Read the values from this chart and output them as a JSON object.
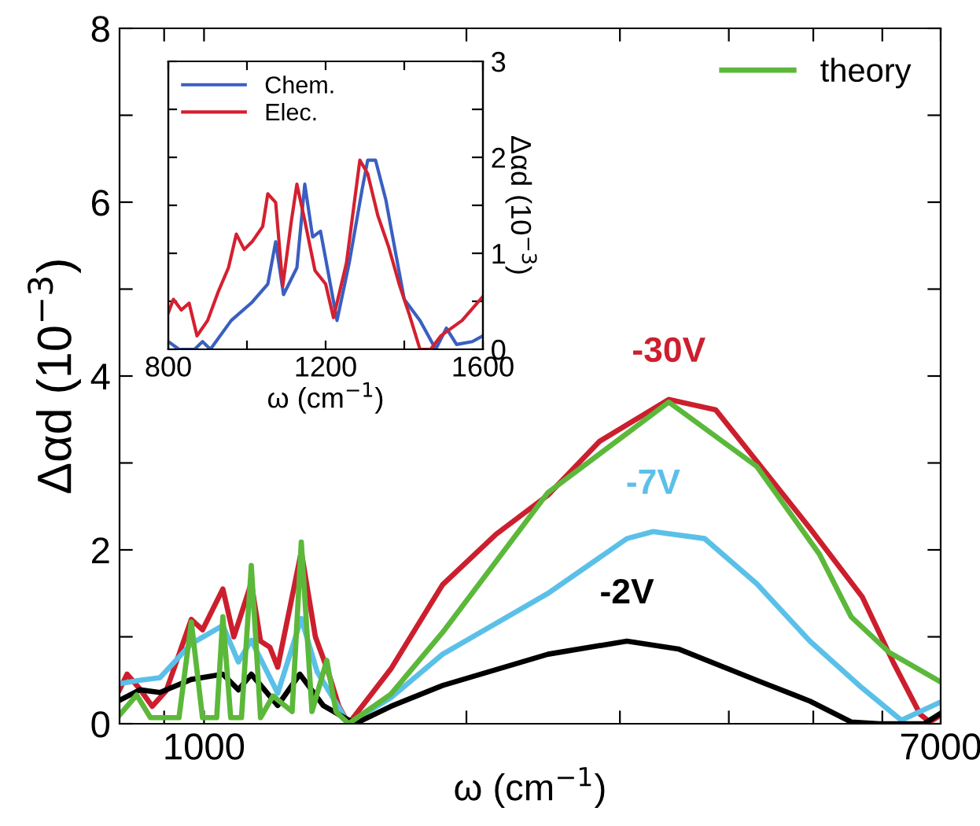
{
  "chart_data": [
    {
      "type": "line",
      "xlabel": "ω (cm$^{−1}$)",
      "ylabel": "Δαd (10$^{−3}$)",
      "log": "x",
      "xlim": [
        800,
        7000
      ],
      "xticks": [
        {
          "value": 900,
          "label": null
        },
        1000,
        {
          "value": 2000,
          "label": null
        },
        {
          "value": 3000,
          "label": null
        },
        {
          "value": 4000,
          "label": null
        },
        {
          "value": 5000,
          "label": null
        },
        {
          "value": 6000,
          "label": null
        },
        7000
      ],
      "ylim": [
        0,
        8
      ],
      "yticks": [
        0,
        {
          "value": 1,
          "label": null
        },
        2,
        {
          "value": 3,
          "label": null
        },
        4,
        {
          "value": 5,
          "label": null
        },
        6,
        {
          "value": 7,
          "label": null
        },
        8
      ],
      "grid": false,
      "legend": "top right",
      "series": [
        {
          "color": "#cc1f2e",
          "x": [
            800,
            816,
            844,
            872,
            905,
            967,
            996,
            1051,
            1082,
            1133,
            1161,
            1190,
            1215,
            1293,
            1342,
            1388,
            1428,
            1465,
            1638,
            1878,
            2163,
            2481,
            2844,
            3413,
            3865,
            4306,
            4955,
            5690,
            6180,
            6630,
            6800,
            7000
          ],
          "values": [
            0.39,
            0.57,
            0.4,
            0.2,
            0.38,
            1.2,
            1.08,
            1.55,
            1.0,
            1.62,
            0.95,
            0.88,
            0.65,
            1.98,
            1.0,
            0.6,
            0.2,
            0.0,
            0.63,
            1.6,
            2.18,
            2.63,
            3.25,
            3.73,
            3.61,
            3.02,
            2.25,
            1.46,
            0.7,
            0.11,
            0.02,
            0.1
          ]
        },
        {
          "color": "#5bc0e8",
          "x": [
            800,
            844,
            890,
            967,
            1051,
            1095,
            1133,
            1215,
            1293,
            1348,
            1465,
            1638,
            1878,
            2481,
            3056,
            3275,
            3752,
            4306,
            4955,
            5690,
            6310,
            7000
          ],
          "values": [
            0.46,
            0.5,
            0.53,
            0.92,
            1.13,
            0.71,
            0.96,
            0.35,
            1.21,
            0.6,
            0.0,
            0.3,
            0.8,
            1.5,
            2.13,
            2.21,
            2.13,
            1.61,
            0.95,
            0.41,
            0.04,
            0.25
          ]
        },
        {
          "color": "#000000",
          "x": [
            800,
            844,
            890,
            967,
            1051,
            1095,
            1133,
            1215,
            1288,
            1370,
            1490,
            1638,
            1878,
            2481,
            3056,
            3500,
            4306,
            4955,
            5526,
            5960,
            6700,
            7000
          ],
          "values": [
            0.27,
            0.39,
            0.36,
            0.51,
            0.57,
            0.39,
            0.57,
            0.21,
            0.57,
            0.21,
            0.0,
            0.2,
            0.44,
            0.8,
            0.95,
            0.86,
            0.5,
            0.26,
            0.02,
            0.0,
            0.0,
            0.12
          ]
        },
        {
          "name": "theory",
          "color": "#5cb83a",
          "x": [
            800,
            837,
            868,
            936,
            967,
            996,
            1034,
            1051,
            1073,
            1104,
            1133,
            1161,
            1200,
            1262,
            1293,
            1330,
            1383,
            1417,
            1465,
            1638,
            1878,
            2481,
            3413,
            4306,
            5082,
            5526,
            6111,
            7000
          ],
          "values": [
            0.1,
            0.33,
            0.07,
            0.07,
            1.17,
            0.07,
            0.07,
            1.23,
            0.07,
            0.07,
            1.82,
            0.07,
            0.32,
            0.14,
            2.09,
            0.14,
            0.73,
            0.14,
            0.0,
            0.34,
            1.05,
            2.66,
            3.7,
            2.96,
            1.95,
            1.23,
            0.82,
            0.48
          ]
        }
      ],
      "annotations": [
        "-30V",
        "-7V",
        "-2V"
      ]
    },
    {
      "type": "line",
      "xlabel": "ω (cm$^{−1}$)",
      "y2label": "Δαd (10$^{−3}$)",
      "xlim": [
        800,
        1600
      ],
      "xticks": [
        800,
        {
          "value": 1000,
          "label": null
        },
        1200,
        {
          "value": 1400,
          "label": null
        },
        1600
      ],
      "y2lim": [
        0,
        3
      ],
      "y2ticks": [
        0,
        {
          "value": 0.5,
          "label": null
        },
        1,
        {
          "value": 1.5,
          "label": null
        },
        2,
        {
          "value": 2.5,
          "label": null
        },
        3
      ],
      "grid": false,
      "legend": "top left",
      "series": [
        {
          "name": "Chem.",
          "color": "#3a5fc0",
          "axis": "y2",
          "x": [
            800,
            827,
            867,
            887,
            907,
            960,
            1013,
            1053,
            1073,
            1093,
            1127,
            1147,
            1167,
            1187,
            1207,
            1229,
            1260,
            1293,
            1307,
            1327,
            1353,
            1380,
            1400,
            1440,
            1480,
            1507,
            1533,
            1573,
            1600
          ],
          "values": [
            0.08,
            0,
            0,
            0.08,
            0,
            0.3,
            0.49,
            0.68,
            1.12,
            0.57,
            0.85,
            1.72,
            1.17,
            1.23,
            0.79,
            0.3,
            0.9,
            1.67,
            1.97,
            1.97,
            1.56,
            0.96,
            0.52,
            0.3,
            0,
            0.22,
            0.05,
            0.08,
            0.14
          ]
        },
        {
          "name": "Elec.",
          "color": "#d42030",
          "axis": "y2",
          "x": [
            800,
            813,
            833,
            853,
            873,
            900,
            927,
            953,
            973,
            993,
            1013,
            1040,
            1053,
            1073,
            1091,
            1113,
            1127,
            1147,
            1173,
            1200,
            1220,
            1253,
            1287,
            1307,
            1333,
            1360,
            1387,
            1413,
            1440,
            1467,
            1493,
            1547,
            1600
          ],
          "values": [
            0.38,
            0.52,
            0.41,
            0.48,
            0.14,
            0.3,
            0.6,
            0.85,
            1.2,
            1.04,
            1.12,
            1.28,
            1.62,
            1.53,
            0.66,
            1.34,
            1.72,
            1.34,
            0.82,
            0.68,
            0.33,
            0.9,
            1.97,
            1.83,
            1.39,
            1.07,
            0.68,
            0.36,
            0,
            0,
            0.14,
            0.3,
            0.55
          ]
        }
      ]
    }
  ]
}
